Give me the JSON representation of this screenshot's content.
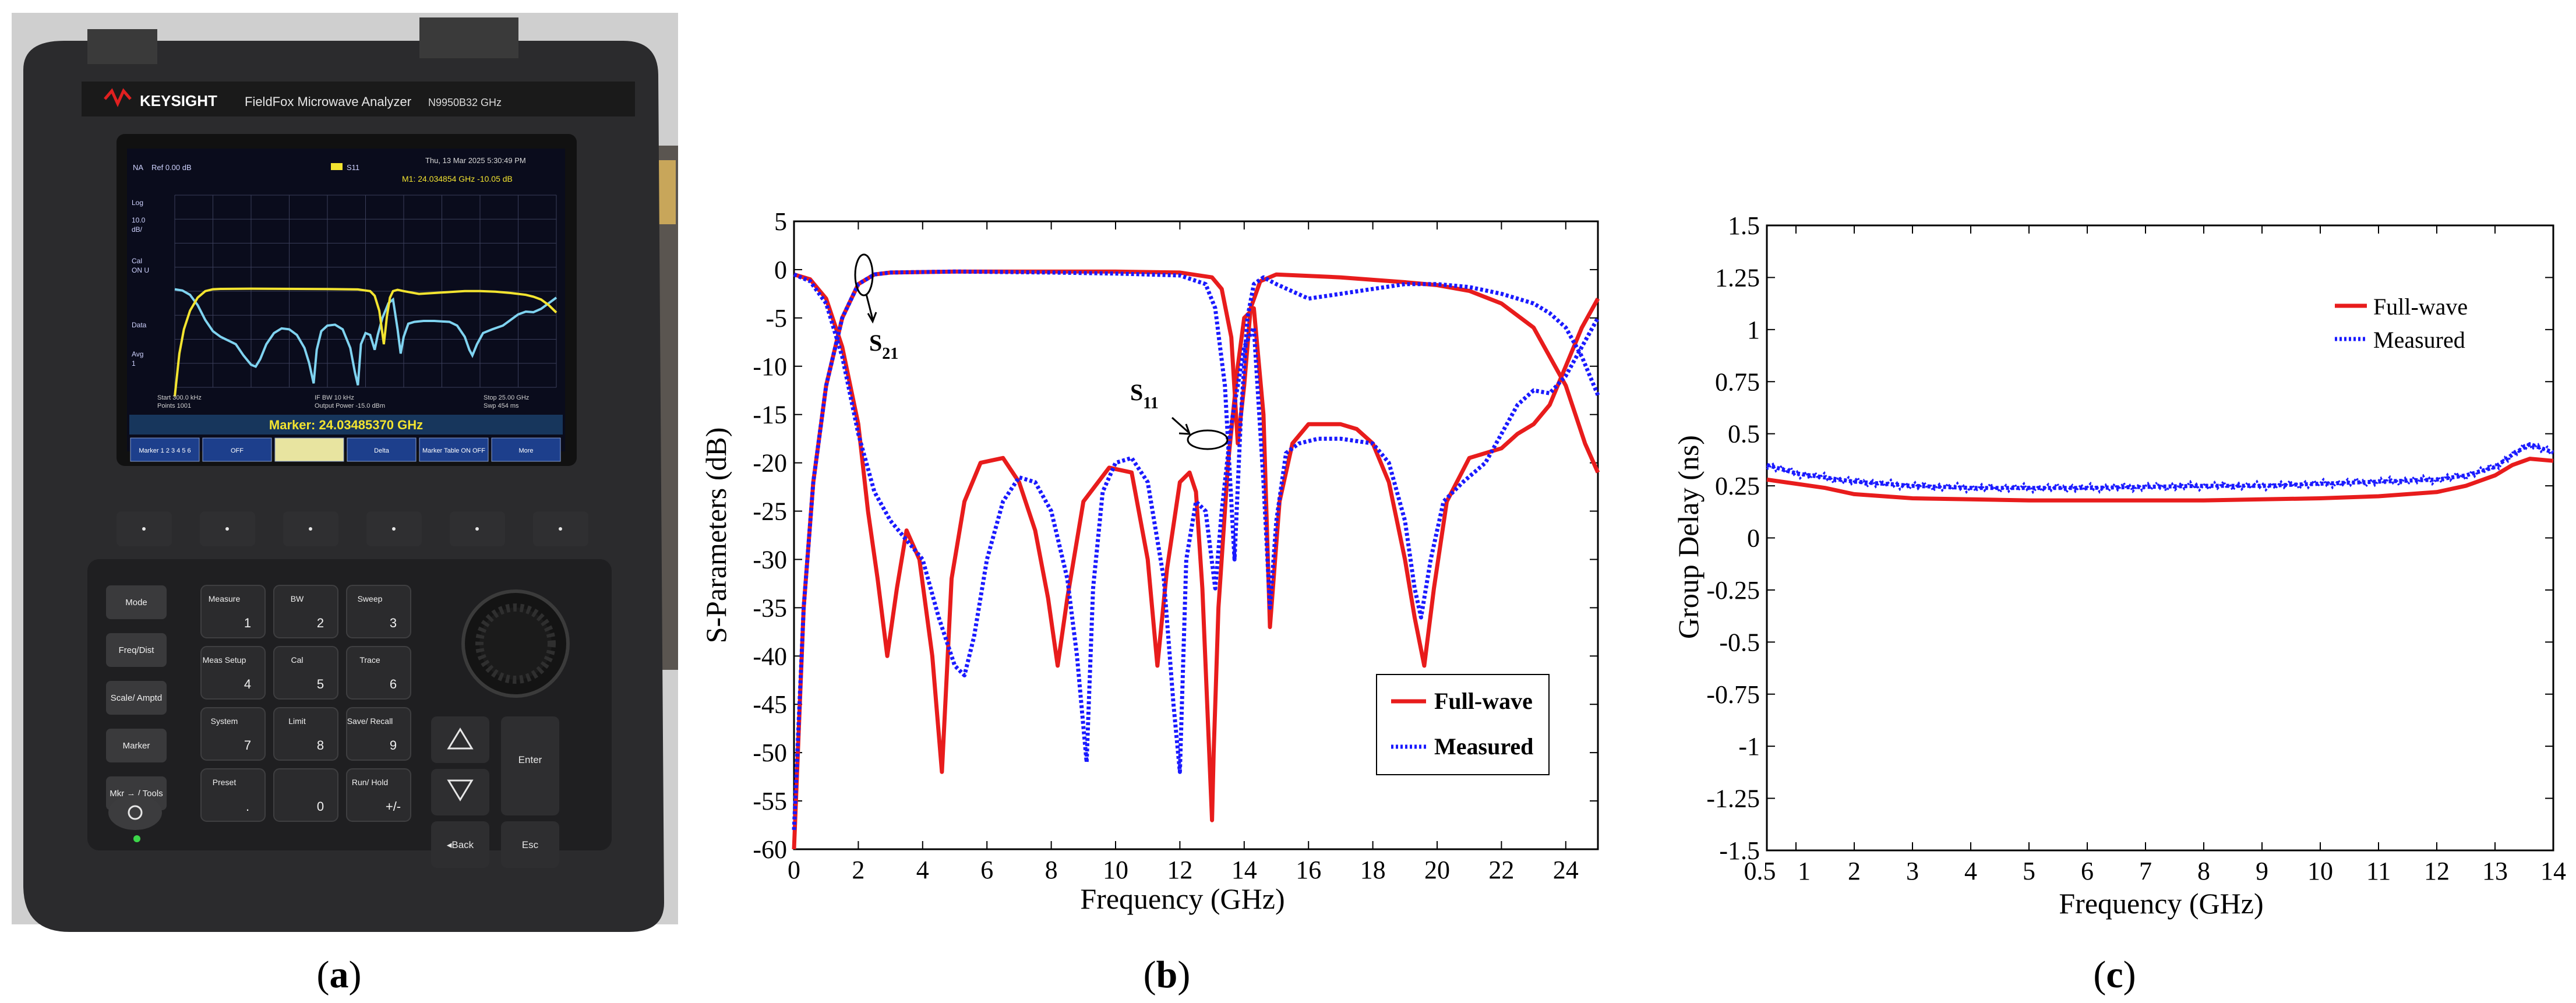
{
  "colors": {
    "fullwave": "#e81c1c",
    "measured": "#1a1aff",
    "axes": "#000000"
  },
  "panels": {
    "a": {
      "label": "(a)"
    },
    "b": {
      "label": "(b)"
    },
    "c": {
      "label": "(c)"
    }
  },
  "device": {
    "brand": "KEYSIGHT",
    "model": "FieldFox Microwave Analyzer",
    "model_number": "N9950B",
    "freq_rating": "32 GHz",
    "screen": {
      "header_left": "NA",
      "ref": "Ref 0.00 dB",
      "trace_name": "S11",
      "datetime": "Thu, 13 Mar 2025 5:30:49 PM",
      "marker_readout": "M1: 24.034854 GHz -10.05 dB",
      "side_log": "Log",
      "side_scale": "10.0",
      "side_unit": "dB/",
      "side_cal": "Cal",
      "side_calstate": "ON U",
      "side_data": "Data",
      "side_avg": "Avg",
      "side_avgnum": "1",
      "start": "Start 300.0 kHz",
      "points": "Points 1001",
      "ifbw": "IF BW 10 kHz",
      "power": "Output Power -15.0 dBm",
      "stop": "Stop 25.00 GHz",
      "sweep": "Swp 454 ms",
      "marker_bar": "Marker: 24.03485370 GHz",
      "softkeys": [
        "Marker 1 2 3 4 5 6",
        "OFF",
        "",
        "Delta",
        "Marker Table ON OFF",
        "More"
      ]
    },
    "keys": [
      {
        "label": "Mode"
      },
      {
        "label": "Freq/Dist"
      },
      {
        "label": "Scale/ Amptd"
      },
      {
        "label": "Marker"
      },
      {
        "label": "Mkr → / Tools"
      },
      {
        "label": "Measure",
        "digit": "1"
      },
      {
        "label": "BW",
        "digit": "2"
      },
      {
        "label": "Sweep",
        "digit": "3"
      },
      {
        "label": "Meas Setup",
        "digit": "4"
      },
      {
        "label": "Cal",
        "digit": "5"
      },
      {
        "label": "Trace",
        "digit": "6"
      },
      {
        "label": "System",
        "digit": "7"
      },
      {
        "label": "Limit",
        "digit": "8"
      },
      {
        "label": "Save/ Recall",
        "digit": "9"
      },
      {
        "label": "Preset",
        "digit": "."
      },
      {
        "label": "",
        "digit": "0"
      },
      {
        "label": "Run/ Hold",
        "digit": "+/-"
      }
    ],
    "nav_keys": {
      "enter": "Enter",
      "back": "◂Back",
      "esc": "Esc"
    }
  },
  "chart_data": [
    {
      "id": "b",
      "type": "line",
      "xlabel": "Frequency (GHz)",
      "ylabel": "S-Parameters (dB)",
      "xlim": [
        0,
        25
      ],
      "ylim": [
        -60,
        5
      ],
      "xticks": [
        "0",
        "2",
        "4",
        "6",
        "8",
        "10",
        "12",
        "14",
        "16",
        "18",
        "20",
        "22",
        "24"
      ],
      "yticks": [
        "5",
        "0",
        "-5",
        "-10",
        "-15",
        "-20",
        "-25",
        "-30",
        "-35",
        "-40",
        "-45",
        "-50",
        "-55",
        "-60"
      ],
      "legend": {
        "position": "bottom-right",
        "entries": [
          "Full-wave",
          "Measured"
        ]
      },
      "annotations": {
        "s21": "S",
        "s21_sub": "21",
        "s11": "S",
        "s11_sub": "11"
      },
      "series": [
        {
          "name": "Full-wave S21",
          "style": "solid",
          "x": [
            0,
            0.3,
            0.6,
            1.0,
            1.5,
            2.0,
            2.5,
            3,
            5,
            8,
            10,
            12,
            13,
            13.3,
            13.6,
            13.8,
            14.0,
            14.2,
            14.5,
            15,
            17,
            19,
            20,
            21,
            22,
            23,
            23.5,
            24,
            24.3,
            24.6,
            25
          ],
          "y": [
            -60,
            -35,
            -22,
            -12,
            -5,
            -1.5,
            -0.5,
            -0.3,
            -0.2,
            -0.2,
            -0.2,
            -0.3,
            -0.8,
            -2,
            -7,
            -18,
            -12,
            -4,
            -1.2,
            -0.5,
            -0.8,
            -1.3,
            -1.6,
            -2.2,
            -3.5,
            -6,
            -9,
            -12,
            -15,
            -18,
            -21
          ]
        },
        {
          "name": "Full-wave S11",
          "style": "solid",
          "x": [
            0,
            0.5,
            1,
            1.5,
            2,
            2.3,
            2.6,
            2.9,
            3.2,
            3.5,
            3.9,
            4.3,
            4.6,
            4.9,
            5.3,
            5.8,
            6.5,
            7.0,
            7.5,
            7.9,
            8.2,
            8.5,
            9.0,
            9.8,
            10.5,
            11.0,
            11.3,
            11.6,
            12.0,
            12.3,
            12.5,
            12.7,
            13.0,
            13.05,
            13.2,
            13.5,
            13.8,
            14.0,
            14.3,
            14.6,
            14.8,
            15.1,
            15.5,
            16.0,
            17.0,
            17.5,
            18.0,
            18.5,
            19.0,
            19.3,
            19.6,
            19.9,
            20.3,
            21,
            22,
            22.5,
            23,
            23.5,
            24,
            24.5,
            25
          ],
          "y": [
            -0.5,
            -1,
            -3,
            -8,
            -16,
            -25,
            -32,
            -40,
            -33,
            -27,
            -30,
            -40,
            -52,
            -32,
            -24,
            -20,
            -19.5,
            -22,
            -27,
            -34,
            -41,
            -34,
            -24,
            -20.5,
            -21,
            -30,
            -41,
            -31,
            -22,
            -21,
            -23,
            -33,
            -57,
            -50,
            -35,
            -20,
            -10,
            -5,
            -4,
            -15,
            -37,
            -24,
            -18,
            -16,
            -16,
            -16.5,
            -18,
            -22,
            -30,
            -36,
            -41,
            -33,
            -24,
            -19.5,
            -18.5,
            -17,
            -16,
            -14,
            -10,
            -6,
            -3
          ]
        },
        {
          "name": "Measured S21",
          "style": "dotted",
          "x": [
            0,
            0.3,
            0.6,
            1.0,
            1.5,
            2.0,
            2.5,
            3,
            5,
            8,
            10,
            12,
            12.8,
            13.1,
            13.4,
            13.7,
            13.9,
            14.1,
            14.3,
            14.6,
            15,
            16,
            17,
            18,
            19,
            20,
            21,
            22,
            23,
            23.5,
            24,
            24.5,
            25
          ],
          "y": [
            -58,
            -35,
            -22,
            -12,
            -5,
            -1.5,
            -0.5,
            -0.3,
            -0.2,
            -0.3,
            -0.4,
            -0.6,
            -1.5,
            -4,
            -12,
            -30,
            -15,
            -5,
            -1.5,
            -0.8,
            -1.5,
            -3,
            -2.5,
            -2,
            -1.5,
            -1.5,
            -1.8,
            -2.5,
            -3.5,
            -4.5,
            -6,
            -9,
            -13
          ]
        },
        {
          "name": "Measured S11",
          "style": "dotted",
          "x": [
            0,
            0.5,
            1,
            1.5,
            2,
            2.5,
            3,
            3.5,
            4,
            4.5,
            5.0,
            5.3,
            5.6,
            6.0,
            6.5,
            7.0,
            7.5,
            8.0,
            8.5,
            8.8,
            9.1,
            9.3,
            9.6,
            10,
            10.5,
            11,
            11.5,
            11.8,
            12.0,
            12.2,
            12.5,
            12.8,
            13.1,
            13.3,
            13.6,
            14.0,
            14.3,
            14.6,
            14.8,
            15.0,
            15.3,
            15.7,
            16.3,
            17,
            18,
            18.5,
            19,
            19.3,
            19.5,
            19.8,
            20.2,
            20.8,
            21.5,
            22.0,
            22.5,
            23.0,
            23.5,
            24,
            24.5,
            25
          ],
          "y": [
            -0.5,
            -1.2,
            -3.5,
            -9,
            -17,
            -23,
            -26,
            -28,
            -30,
            -36,
            -41,
            -42,
            -38,
            -30,
            -24,
            -21.5,
            -22,
            -25,
            -32,
            -40,
            -51,
            -33,
            -23,
            -20,
            -19.5,
            -22,
            -32,
            -45,
            -52,
            -30,
            -24,
            -25,
            -33,
            -25,
            -16,
            -8,
            -6,
            -22,
            -35,
            -26,
            -19,
            -18,
            -17.5,
            -17.5,
            -18,
            -20,
            -26,
            -33,
            -36,
            -30,
            -24,
            -22,
            -20,
            -17,
            -14,
            -12.5,
            -12.8,
            -11,
            -8,
            -5
          ]
        }
      ]
    },
    {
      "id": "c",
      "type": "line",
      "xlabel": "Frequency (GHz)",
      "ylabel": "Group Delay (ns)",
      "xlim": [
        0.5,
        14
      ],
      "ylim": [
        -1.5,
        1.5
      ],
      "xticks": [
        "0.5",
        "1",
        "2",
        "3",
        "4",
        "5",
        "6",
        "7",
        "8",
        "9",
        "10",
        "11",
        "12",
        "13",
        "14"
      ],
      "yticks": [
        "1.5",
        "1.25",
        "1",
        "0.75",
        "0.5",
        "0.25",
        "0",
        "-0.25",
        "-0.5",
        "-0.75",
        "-1",
        "-1.25",
        "-1.5"
      ],
      "legend": {
        "position": "top-right",
        "entries": [
          "Full-wave",
          "Measured"
        ]
      },
      "series": [
        {
          "name": "Full-wave",
          "style": "solid",
          "x": [
            0.5,
            1,
            1.5,
            2,
            3,
            4,
            5,
            6,
            7,
            8,
            9,
            10,
            11,
            12,
            12.5,
            13,
            13.3,
            13.6,
            14
          ],
          "y": [
            0.28,
            0.26,
            0.24,
            0.21,
            0.19,
            0.185,
            0.18,
            0.18,
            0.18,
            0.18,
            0.185,
            0.19,
            0.2,
            0.22,
            0.25,
            0.3,
            0.35,
            0.38,
            0.37
          ]
        },
        {
          "name": "Measured",
          "style": "dotted",
          "x": [
            0.5,
            1,
            1.5,
            2,
            3,
            4,
            5,
            6,
            7,
            8,
            9,
            10,
            11,
            12,
            12.5,
            13,
            13.3,
            13.6,
            14
          ],
          "y": [
            0.35,
            0.31,
            0.29,
            0.27,
            0.25,
            0.24,
            0.24,
            0.24,
            0.245,
            0.25,
            0.25,
            0.26,
            0.27,
            0.28,
            0.3,
            0.34,
            0.4,
            0.45,
            0.41
          ]
        }
      ]
    }
  ]
}
